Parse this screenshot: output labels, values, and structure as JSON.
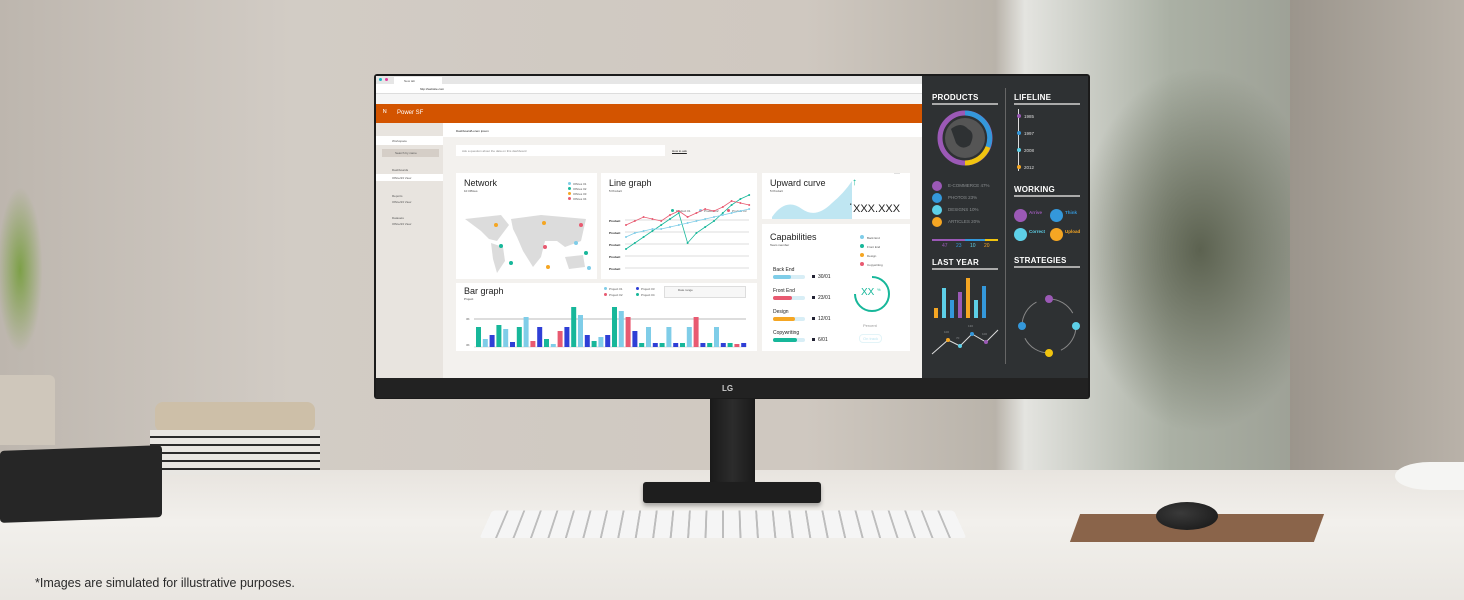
{
  "caption": "*Images are simulated for illustrative purposes.",
  "monitor_logo": "LG",
  "browser": {
    "tab_title": "New tab",
    "url": "http://website.com"
  },
  "app": {
    "name": "Power SF",
    "accent": "#d35400"
  },
  "sidebar": {
    "section": "Workspace",
    "search_placeholder": "Search by name",
    "items": [
      {
        "label": "Dashboards",
        "sub": "Office/23 View"
      },
      {
        "label": "Reports",
        "sub": "Office/23 View"
      },
      {
        "label": "Datasets",
        "sub": "Office/23 View"
      }
    ]
  },
  "main": {
    "breadcrumb": "Dashboard/Lorem ipsum",
    "ask_placeholder": "Ask a question about the data on this dashboard",
    "ask_link": "How to ask"
  },
  "network": {
    "title": "Network",
    "subtitle": "10 Offices",
    "legend": [
      "Offices 01",
      "Offices 02",
      "Offices 03",
      "Offices 04"
    ]
  },
  "line": {
    "title": "Line graph",
    "subtitle": "5 Product",
    "legend": [
      "Product 01",
      "Product 02",
      "Product 03"
    ],
    "ylabels": [
      "Product",
      "Product",
      "Product",
      "Product",
      "Product"
    ]
  },
  "bar": {
    "title": "Bar graph",
    "subtitle": "Project",
    "legend": [
      "Project 01",
      "Project 02",
      "Project 03",
      "Project 04"
    ],
    "date_label": "Date range",
    "ylabels": [
      "3K",
      "3K"
    ]
  },
  "upward": {
    "title": "Upward curve",
    "subtitle": "5 Product",
    "value": "XXX.XXX",
    "prefix": "£"
  },
  "capabilities": {
    "title": "Capabilities",
    "subtitle": "Team member",
    "legend": [
      "Back End",
      "Front End",
      "Design",
      "Copywriting"
    ],
    "rows": [
      {
        "label": "Back End",
        "date": "30/01",
        "pct": 0.55,
        "color": "#7fcde8"
      },
      {
        "label": "Front End",
        "date": "23/01",
        "pct": 0.6,
        "color": "#e85a71"
      },
      {
        "label": "Design",
        "date": "12/01",
        "pct": 0.7,
        "color": "#f5a623"
      },
      {
        "label": "Copywriting",
        "date": "6/01",
        "pct": 0.75,
        "color": "#17b79a"
      }
    ],
    "gauge_value": "XX",
    "gauge_unit": "%",
    "gauge_label": "Percent",
    "status": "On track"
  },
  "panel": {
    "products": {
      "title": "PRODUCTS",
      "items": [
        "E-COMMERCE 47%",
        "PHOTOS 23%",
        "DESIGNS 10%",
        "ARTICLES 20%"
      ],
      "values": [
        "47",
        "23",
        "10",
        "20"
      ]
    },
    "lifeline": {
      "title": "LIFELINE",
      "years": [
        "1985",
        "1997",
        "2008",
        "2012"
      ]
    },
    "working": {
      "title": "WORKING",
      "items": [
        "Arrive",
        "Think",
        "Correct",
        "Upload"
      ]
    },
    "last_year": {
      "title": "LAST YEAR",
      "points": [
        "100",
        "70",
        "130",
        "100"
      ]
    },
    "strategies": {
      "title": "STRATEGIES"
    }
  }
}
